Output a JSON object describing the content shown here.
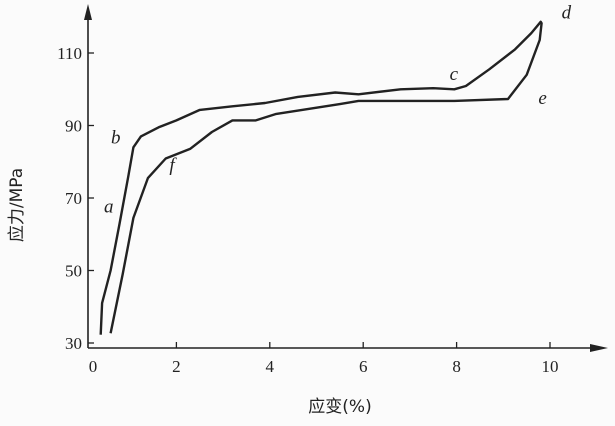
{
  "chart_data": {
    "type": "line",
    "title": "",
    "xlabel": "应变(%)",
    "ylabel": "应力/MPa",
    "xlim": [
      0,
      11
    ],
    "ylim": [
      30,
      120
    ],
    "xticks": [
      0,
      2,
      4,
      6,
      8,
      10
    ],
    "yticks": [
      30,
      50,
      70,
      90,
      110
    ],
    "grid": false,
    "line_color": "#222222",
    "series": [
      {
        "points": [
          [
            0.38,
            32.3
          ],
          [
            0.41,
            41
          ],
          [
            0.59,
            50
          ],
          [
            0.78,
            62.7
          ],
          [
            0.97,
            76
          ],
          [
            1.08,
            84
          ],
          [
            1.24,
            87
          ],
          [
            1.62,
            89.5
          ],
          [
            2.0,
            91.4
          ],
          [
            2.5,
            94.3
          ],
          [
            3.2,
            95.3
          ],
          [
            3.9,
            96.2
          ],
          [
            4.6,
            97.9
          ],
          [
            5.4,
            99.1
          ],
          [
            5.9,
            98.6
          ],
          [
            6.8,
            100
          ],
          [
            7.5,
            100.3
          ],
          [
            7.95,
            100
          ],
          [
            8.2,
            100.9
          ],
          [
            8.7,
            105.5
          ],
          [
            9.25,
            111
          ],
          [
            9.6,
            115.5
          ],
          [
            9.8,
            118.6
          ],
          [
            9.82,
            118.2
          ],
          [
            9.78,
            113.6
          ],
          [
            9.5,
            104
          ],
          [
            9.1,
            97.3
          ],
          [
            7.95,
            96.8
          ],
          [
            5.9,
            96.8
          ],
          [
            5.5,
            95.9
          ],
          [
            4.14,
            93.2
          ],
          [
            3.7,
            91.4
          ],
          [
            3.2,
            91.4
          ],
          [
            2.76,
            88.2
          ],
          [
            2.3,
            83.6
          ],
          [
            1.77,
            80.9
          ],
          [
            1.39,
            75.5
          ],
          [
            1.08,
            64.5
          ],
          [
            0.85,
            49
          ],
          [
            0.59,
            32.7
          ]
        ]
      }
    ],
    "annotations": [
      {
        "text": "a",
        "x": 0.45,
        "y": 66
      },
      {
        "text": "b",
        "x": 0.6,
        "y": 85
      },
      {
        "text": "c",
        "x": 7.85,
        "y": 102.5
      },
      {
        "text": "d",
        "x": 10.25,
        "y": 119.5
      },
      {
        "text": "e",
        "x": 9.75,
        "y": 96
      },
      {
        "text": "f",
        "x": 1.85,
        "y": 77.5
      }
    ]
  }
}
